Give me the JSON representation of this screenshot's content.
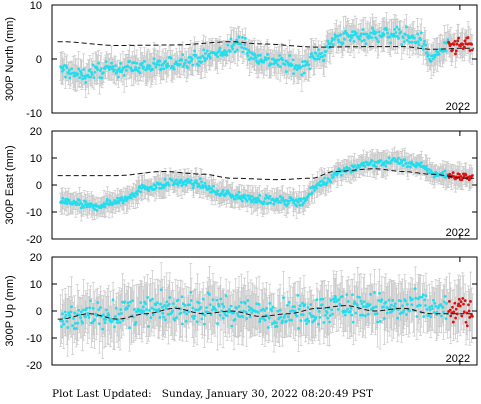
{
  "footer": {
    "label": "Plot Last Updated:",
    "value": "Sunday, January 30, 2022 08:20:49 PST"
  },
  "colors": {
    "obs": "#22ddee",
    "recent": "#dd1111",
    "errorbar": "#c8c8c8",
    "model": "#111111"
  },
  "chart_data": [
    {
      "type": "scatter",
      "ylabel": "300P North (mm)",
      "ylim": [
        -10,
        10
      ],
      "yticks": [
        -10,
        0,
        10
      ],
      "x_tick_label": "2022",
      "series_obs_knots": [
        [
          2015.0,
          -2
        ],
        [
          2015.3,
          -3
        ],
        [
          2015.8,
          -2
        ],
        [
          2016.3,
          -1.5
        ],
        [
          2016.8,
          -1.2
        ],
        [
          2017.3,
          0
        ],
        [
          2017.8,
          1
        ],
        [
          2018.2,
          3
        ],
        [
          2018.35,
          0.5
        ],
        [
          2018.8,
          -0.5
        ],
        [
          2019.2,
          -1.5
        ],
        [
          2019.5,
          0.5
        ],
        [
          2019.9,
          4
        ],
        [
          2020.4,
          4.5
        ],
        [
          2020.9,
          4.5
        ],
        [
          2021.3,
          3.5
        ],
        [
          2021.5,
          0
        ],
        [
          2021.7,
          2
        ],
        [
          2022.1,
          2.5
        ]
      ],
      "model_knots": [
        [
          2015.0,
          3.2
        ],
        [
          2016.0,
          2.5
        ],
        [
          2017.0,
          2.6
        ],
        [
          2018.0,
          3.2
        ],
        [
          2018.5,
          2.8
        ],
        [
          2019.5,
          2.2
        ],
        [
          2020.5,
          2.3
        ],
        [
          2021.0,
          2.3
        ],
        [
          2021.5,
          1.8
        ],
        [
          2022.1,
          2.0
        ]
      ],
      "obs_noise": 1.2,
      "err_size": 2.3
    },
    {
      "type": "scatter",
      "ylabel": "300P East (mm)",
      "ylim": [
        -20,
        20
      ],
      "yticks": [
        -20,
        -10,
        0,
        10,
        20
      ],
      "x_tick_label": "2022",
      "series_obs_knots": [
        [
          2015.0,
          -6
        ],
        [
          2015.6,
          -8
        ],
        [
          2016.0,
          -6
        ],
        [
          2016.5,
          -1
        ],
        [
          2017.0,
          1
        ],
        [
          2017.4,
          0.5
        ],
        [
          2017.8,
          -3
        ],
        [
          2018.3,
          -5
        ],
        [
          2018.8,
          -6
        ],
        [
          2019.2,
          -6
        ],
        [
          2019.6,
          1
        ],
        [
          2020.0,
          6
        ],
        [
          2020.5,
          8
        ],
        [
          2020.9,
          9
        ],
        [
          2021.3,
          7
        ],
        [
          2021.6,
          4
        ],
        [
          2022.1,
          3
        ]
      ],
      "model_knots": [
        [
          2015.0,
          3.5
        ],
        [
          2016.0,
          3.5
        ],
        [
          2016.8,
          5
        ],
        [
          2017.5,
          4
        ],
        [
          2018.0,
          2.5
        ],
        [
          2018.8,
          2
        ],
        [
          2019.4,
          2.5
        ],
        [
          2019.8,
          5
        ],
        [
          2020.5,
          6
        ],
        [
          2021.0,
          5
        ],
        [
          2021.5,
          4
        ],
        [
          2022.1,
          2.5
        ]
      ],
      "obs_noise": 1.3,
      "err_size": 3.5
    },
    {
      "type": "scatter",
      "ylabel": "300P Up (mm)",
      "ylim": [
        -20,
        20
      ],
      "yticks": [
        -20,
        -10,
        0,
        10,
        20
      ],
      "x_tick_label": "2022",
      "series_obs_knots": [
        [
          2015.0,
          -3
        ],
        [
          2016.0,
          -1
        ],
        [
          2017.0,
          1
        ],
        [
          2018.0,
          0
        ],
        [
          2019.0,
          -1
        ],
        [
          2020.0,
          2
        ],
        [
          2021.0,
          1
        ],
        [
          2022.1,
          0
        ]
      ],
      "model_knots": [
        [
          2015.0,
          -3
        ],
        [
          2015.5,
          -1
        ],
        [
          2016.0,
          -3
        ],
        [
          2016.5,
          -1
        ],
        [
          2017.0,
          1
        ],
        [
          2017.5,
          -1
        ],
        [
          2018.0,
          0
        ],
        [
          2018.5,
          -2
        ],
        [
          2019.0,
          -1
        ],
        [
          2019.5,
          1
        ],
        [
          2020.0,
          2
        ],
        [
          2020.5,
          0
        ],
        [
          2021.0,
          1
        ],
        [
          2021.5,
          -1
        ],
        [
          2022.1,
          -1
        ]
      ],
      "obs_noise": 4.5,
      "err_size": 8
    }
  ],
  "x_range": [
    2014.85,
    2022.3
  ],
  "recent_start": 2021.8
}
